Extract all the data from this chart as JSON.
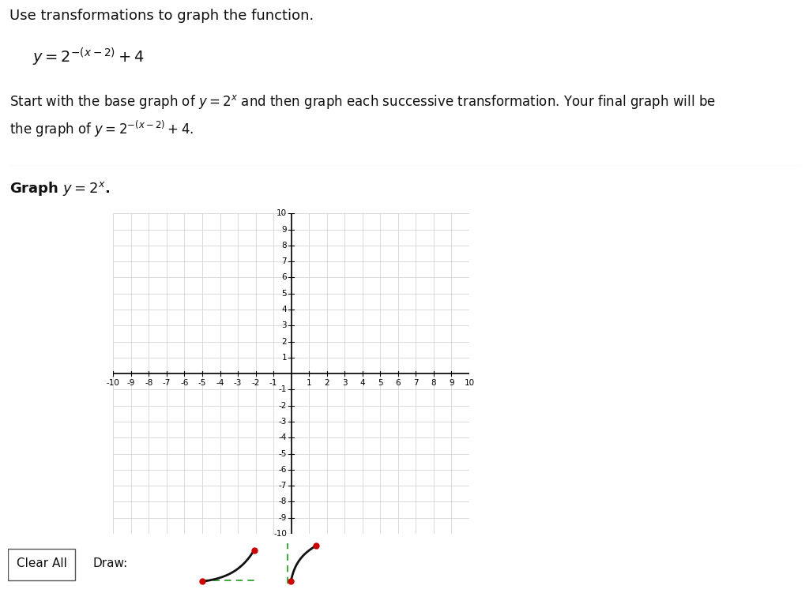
{
  "bg_color": "#ffffff",
  "title_text": "Use transformations to graph the function.",
  "formula1": "$y = 2^{-(x-2)} + 4$",
  "body_text": "Start with the base graph of $y = 2^{x}$ and then graph each successive transformation. Your final graph will be\nthe graph of $y = 2^{-(x-2)} + 4$.",
  "graph_label": "Graph $y = 2^{x}$.",
  "axis_range": [
    -10,
    10
  ],
  "axis_color": "#000000",
  "grid_color": "#cccccc",
  "grid_minor_color": "#e0e0e0",
  "tick_label_color": "#000000",
  "button_clear_label": "Clear All",
  "button_draw_label": "Draw:",
  "curve_color": "#222222",
  "dot_color": "#cc0000",
  "dashed_line_color": "#44aa44"
}
